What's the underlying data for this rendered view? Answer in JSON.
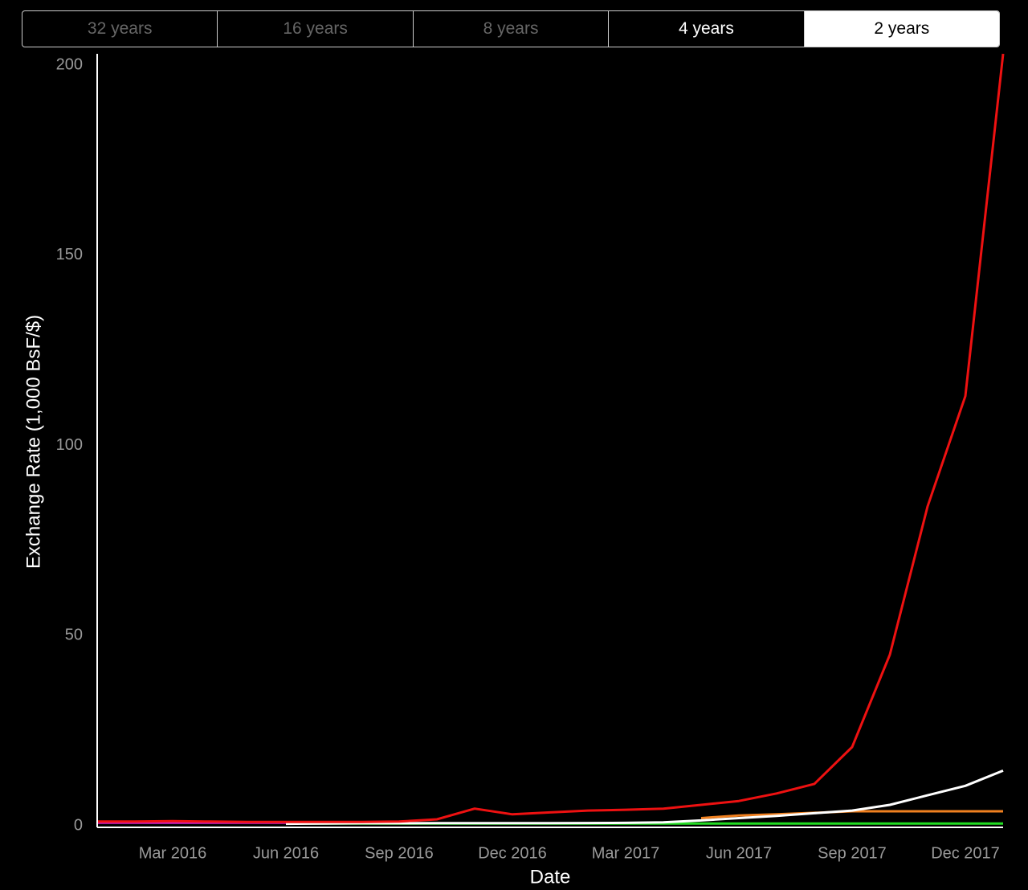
{
  "tabs": {
    "labels": [
      "32 years",
      "16 years",
      "8 years",
      "4 years",
      "2 years"
    ],
    "selected_index": 4
  },
  "chart_data": {
    "type": "line",
    "x_label": "Date",
    "y_label": "Exchange Rate (1,000 BsF/$)",
    "x": [
      "2016-01",
      "2016-02",
      "2016-03",
      "2016-04",
      "2016-05",
      "2016-06",
      "2016-07",
      "2016-08",
      "2016-09",
      "2016-10",
      "2016-11",
      "2016-12",
      "2017-01",
      "2017-02",
      "2017-03",
      "2017-04",
      "2017-05",
      "2017-06",
      "2017-07",
      "2017-08",
      "2017-09",
      "2017-10",
      "2017-11",
      "2017-12",
      "2018-01"
    ],
    "series": [
      {
        "color": "#d020c0",
        "values": [
          0.8,
          0.8,
          0.8,
          0.8,
          0.8,
          0.8,
          null,
          null,
          null,
          null,
          null,
          null,
          null,
          null,
          null,
          null,
          null,
          null,
          null,
          null,
          null,
          null,
          null,
          null,
          null
        ]
      },
      {
        "color": "#22dd22",
        "values": [
          null,
          null,
          null,
          null,
          null,
          0.6,
          0.6,
          0.6,
          0.6,
          0.6,
          0.6,
          0.6,
          0.6,
          0.6,
          0.6,
          0.6,
          0.6,
          0.6,
          0.6,
          0.6,
          0.6,
          0.6,
          0.6,
          0.6,
          0.6
        ]
      },
      {
        "color": "#f08020",
        "values": [
          null,
          null,
          null,
          null,
          null,
          null,
          null,
          null,
          null,
          null,
          null,
          null,
          null,
          null,
          null,
          null,
          2.0,
          2.7,
          3.0,
          3.4,
          3.8,
          3.8,
          3.8,
          3.8,
          3.8
        ]
      },
      {
        "color": "#ffffff",
        "values": [
          null,
          null,
          null,
          null,
          null,
          0.5,
          0.6,
          0.65,
          0.66,
          0.67,
          0.67,
          0.68,
          0.7,
          0.72,
          0.75,
          0.9,
          1.4,
          2.0,
          2.6,
          3.3,
          4.0,
          5.5,
          8.0,
          10.5,
          14.5
        ]
      },
      {
        "color": "#ee1111",
        "values": [
          1.1,
          1.1,
          1.2,
          1.1,
          1.0,
          1.0,
          1.0,
          1.0,
          1.1,
          1.7,
          4.5,
          3.0,
          3.5,
          4.0,
          4.2,
          4.5,
          5.5,
          6.5,
          8.5,
          11,
          20.7,
          45,
          84,
          113,
          203
        ]
      }
    ],
    "xlim": [
      "2016-01",
      "2018-01"
    ],
    "xticks": [
      {
        "value": "2016-03",
        "label": "Mar 2016"
      },
      {
        "value": "2016-06",
        "label": "Jun 2016"
      },
      {
        "value": "2016-09",
        "label": "Sep 2016"
      },
      {
        "value": "2016-12",
        "label": "Dec 2016"
      },
      {
        "value": "2017-03",
        "label": "Mar 2017"
      },
      {
        "value": "2017-06",
        "label": "Jun 2017"
      },
      {
        "value": "2017-09",
        "label": "Sep 2017"
      },
      {
        "value": "2017-12",
        "label": "Dec 2017"
      }
    ],
    "ylim": [
      0,
      203
    ],
    "yticks": [
      0,
      50,
      100,
      150,
      200
    ],
    "grid": false
  }
}
